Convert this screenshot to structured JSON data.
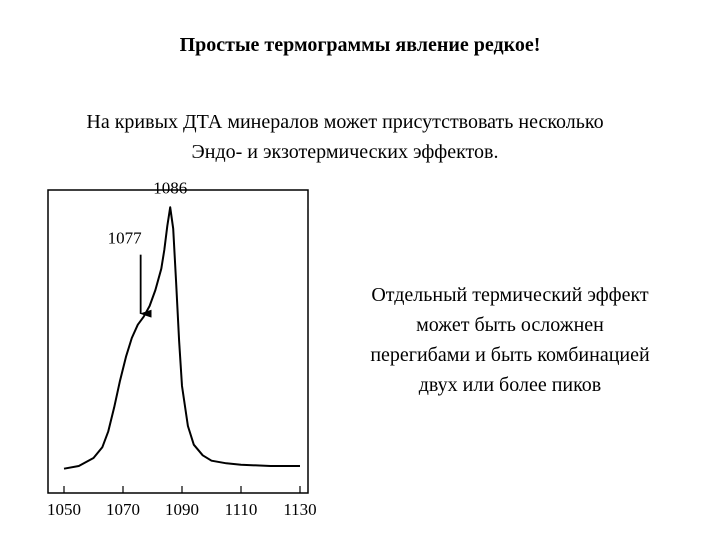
{
  "title": "Простые термограммы явление редкое!",
  "intro": {
    "line1": "На кривых ДТА минералов может присутствовать несколько",
    "line2": "Эндо- и экзотермических эффектов."
  },
  "note": {
    "lines": [
      "Отдельный термический эффект",
      "может быть осложнен",
      "перегибами и быть комбинацией",
      "двух или более пиков"
    ]
  },
  "chart_data": {
    "type": "line",
    "title": "",
    "xlabel": "",
    "ylabel": "",
    "xlim": [
      1050,
      1130
    ],
    "ylim": [
      0,
      1.05
    ],
    "grid": false,
    "xticks": [
      1050,
      1070,
      1090,
      1110,
      1130
    ],
    "series": [
      {
        "x": [
          1050,
          1055,
          1060,
          1063,
          1065,
          1067,
          1069,
          1071,
          1073,
          1075,
          1077,
          1079,
          1081,
          1083,
          1084,
          1085,
          1086,
          1087,
          1088,
          1089,
          1090,
          1092,
          1094,
          1097,
          1100,
          1105,
          1110,
          1120,
          1130
        ],
        "y": [
          0.02,
          0.03,
          0.06,
          0.1,
          0.16,
          0.25,
          0.35,
          0.44,
          0.51,
          0.56,
          0.59,
          0.63,
          0.69,
          0.77,
          0.84,
          0.93,
          1.0,
          0.92,
          0.72,
          0.5,
          0.33,
          0.18,
          0.11,
          0.07,
          0.05,
          0.04,
          0.035,
          0.03,
          0.03
        ]
      }
    ],
    "annotations": [
      {
        "label": "1086",
        "x": 1086,
        "y": 1.0,
        "style": "label"
      },
      {
        "label": "1077",
        "x": 1077,
        "y": 0.59,
        "style": "arrow"
      }
    ]
  }
}
